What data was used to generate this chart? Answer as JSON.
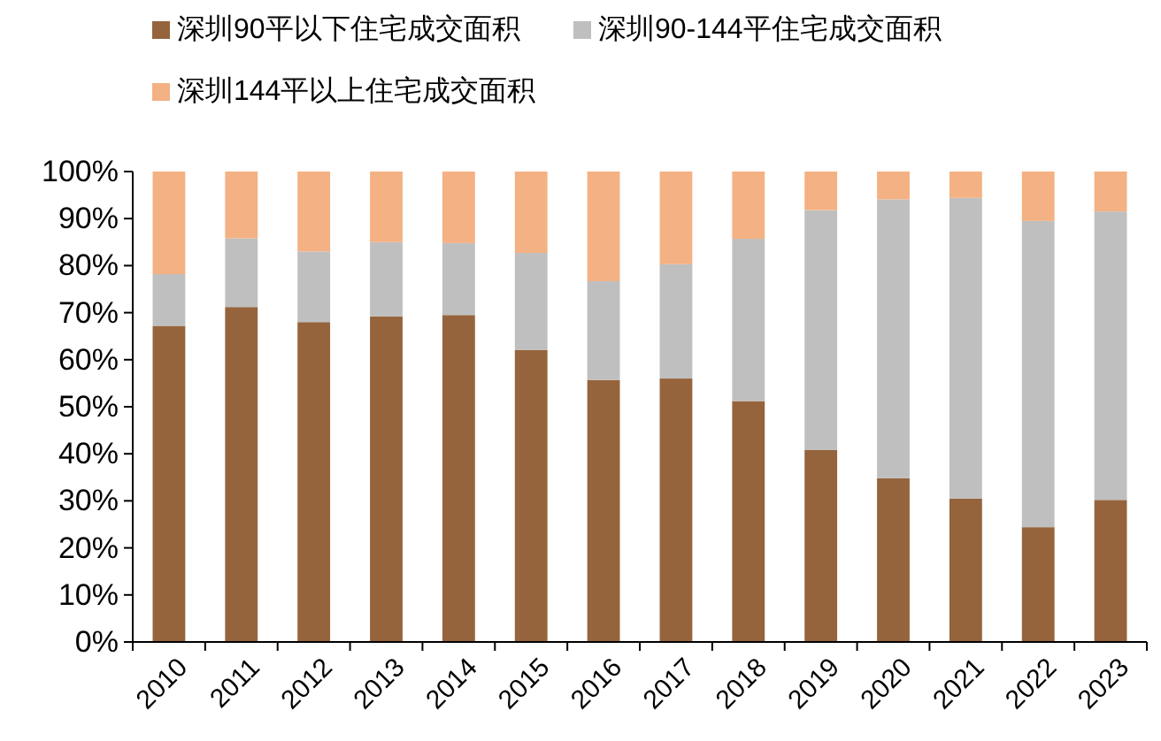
{
  "chart_data": {
    "type": "bar",
    "stacked": true,
    "legend": "top",
    "grid": false,
    "categories": [
      "2010",
      "2011",
      "2012",
      "2013",
      "2014",
      "2015",
      "2016",
      "2017",
      "2018",
      "2019",
      "2020",
      "2021",
      "2022",
      "2023"
    ],
    "series": [
      {
        "name": "深圳90平以下住宅成交面积",
        "color": "#96643c",
        "values": [
          67.2,
          71.2,
          68.0,
          69.2,
          69.5,
          62.1,
          55.7,
          56.0,
          51.2,
          40.8,
          34.8,
          30.5,
          24.4,
          30.2
        ]
      },
      {
        "name": "深圳90-144平住宅成交面积",
        "color": "#bfbfbf",
        "values": [
          11.0,
          14.6,
          15.0,
          15.8,
          15.3,
          20.6,
          21.0,
          24.3,
          34.5,
          51.0,
          59.3,
          63.9,
          65.1,
          61.3
        ]
      },
      {
        "name": "深圳144平以上住宅成交面积",
        "color": "#f4b183",
        "values": [
          21.8,
          14.2,
          17.0,
          15.0,
          15.2,
          17.3,
          23.3,
          19.7,
          14.3,
          8.2,
          5.9,
          5.6,
          10.5,
          8.5
        ]
      }
    ],
    "ylim": [
      0,
      100
    ],
    "yticks": [
      {
        "value": 0,
        "label": "0%"
      },
      {
        "value": 10,
        "label": "10%"
      },
      {
        "value": 20,
        "label": "20%"
      },
      {
        "value": 30,
        "label": "30%"
      },
      {
        "value": 40,
        "label": "40%"
      },
      {
        "value": 50,
        "label": "50%"
      },
      {
        "value": 60,
        "label": "60%"
      },
      {
        "value": 70,
        "label": "70%"
      },
      {
        "value": 80,
        "label": "80%"
      },
      {
        "value": 90,
        "label": "90%"
      },
      {
        "value": 100,
        "label": "100%"
      }
    ]
  }
}
